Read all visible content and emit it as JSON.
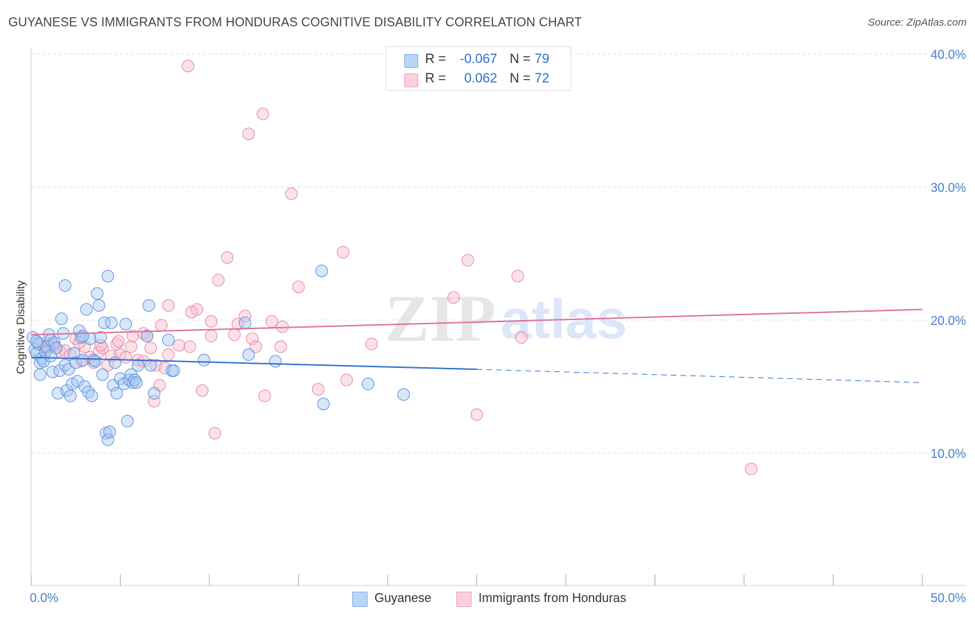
{
  "title": "GUYANESE VS IMMIGRANTS FROM HONDURAS COGNITIVE DISABILITY CORRELATION CHART",
  "source": "Source: ZipAtlas.com",
  "watermark": {
    "part1": "ZIP",
    "part2": "atlas"
  },
  "legend": {
    "rows": [
      {
        "r_label": "R =",
        "r_value": "-0.067",
        "n_label": "N =",
        "n_value": "79",
        "color": "#7baaf0"
      },
      {
        "r_label": "R =",
        "r_value": "0.062",
        "n_label": "N =",
        "n_value": "72",
        "color": "#f4a0bb"
      }
    ]
  },
  "bottom_legend": [
    {
      "label": "Guyanese",
      "color": "#7baaf0"
    },
    {
      "label": "Immigrants from Honduras",
      "color": "#f4a0bb"
    }
  ],
  "colors": {
    "blue_fill": "#a9c8f3",
    "blue_stroke": "#5e92dd",
    "blue_line": "#2f6fcf",
    "pink_fill": "#f7bccd",
    "pink_stroke": "#e88aa8",
    "pink_line": "#e0709a",
    "tick_text": "#4a7fd0",
    "grid": "#dddddd"
  },
  "chart_data": {
    "type": "scatter",
    "title": "GUYANESE VS IMMIGRANTS FROM HONDURAS COGNITIVE DISABILITY CORRELATION CHART",
    "xlabel": "",
    "ylabel": "Cognitive Disability",
    "xlim": [
      0,
      50
    ],
    "ylim": [
      0,
      41
    ],
    "x_tick_labels": [
      "0.0%",
      "50.0%"
    ],
    "y_ticks": [
      10,
      20,
      30,
      40
    ],
    "y_tick_labels": [
      "10.0%",
      "20.0%",
      "30.0%",
      "40.0%"
    ],
    "grid": true,
    "series": [
      {
        "name": "Guyanese",
        "r": -0.067,
        "n": 79,
        "trend": {
          "x0": 0,
          "y0": 17.2,
          "x1": 25,
          "y1": 16.3,
          "dashed_to_x": 50,
          "dashed_to_y": 15.3
        },
        "points": [
          [
            0.1,
            18.7
          ],
          [
            0.2,
            17.8
          ],
          [
            0.3,
            17.5
          ],
          [
            0.4,
            18.2
          ],
          [
            0.5,
            16.8
          ],
          [
            0.5,
            15.9
          ],
          [
            0.6,
            17.1
          ],
          [
            0.7,
            16.9
          ],
          [
            0.8,
            17.6
          ],
          [
            0.9,
            18.0
          ],
          [
            1.0,
            18.9
          ],
          [
            1.1,
            18.5
          ],
          [
            1.2,
            16.1
          ],
          [
            1.3,
            18.3
          ],
          [
            1.4,
            17.9
          ],
          [
            1.5,
            14.5
          ],
          [
            1.6,
            16.2
          ],
          [
            1.7,
            20.1
          ],
          [
            1.8,
            19.0
          ],
          [
            1.9,
            16.6
          ],
          [
            1.9,
            22.6
          ],
          [
            2.0,
            14.7
          ],
          [
            2.1,
            16.3
          ],
          [
            2.2,
            14.3
          ],
          [
            2.3,
            15.2
          ],
          [
            2.4,
            17.5
          ],
          [
            2.5,
            16.8
          ],
          [
            2.6,
            15.4
          ],
          [
            2.7,
            19.2
          ],
          [
            2.8,
            18.7
          ],
          [
            2.9,
            17.0
          ],
          [
            3.0,
            15.0
          ],
          [
            3.1,
            20.8
          ],
          [
            3.2,
            14.6
          ],
          [
            3.3,
            18.6
          ],
          [
            3.4,
            14.3
          ],
          [
            3.5,
            17.0
          ],
          [
            3.6,
            16.9
          ],
          [
            3.7,
            22.0
          ],
          [
            3.8,
            21.1
          ],
          [
            3.9,
            18.7
          ],
          [
            4.0,
            15.9
          ],
          [
            4.1,
            19.8
          ],
          [
            4.2,
            11.5
          ],
          [
            4.3,
            11.0
          ],
          [
            4.3,
            23.3
          ],
          [
            4.4,
            11.6
          ],
          [
            4.5,
            19.8
          ],
          [
            4.6,
            15.1
          ],
          [
            4.7,
            16.8
          ],
          [
            4.8,
            14.5
          ],
          [
            5.0,
            15.6
          ],
          [
            5.2,
            15.2
          ],
          [
            5.3,
            19.7
          ],
          [
            5.4,
            12.4
          ],
          [
            5.5,
            15.5
          ],
          [
            5.6,
            15.9
          ],
          [
            5.7,
            15.3
          ],
          [
            5.8,
            15.5
          ],
          [
            5.9,
            15.3
          ],
          [
            6.0,
            16.6
          ],
          [
            6.5,
            18.8
          ],
          [
            6.6,
            21.1
          ],
          [
            6.7,
            16.6
          ],
          [
            6.9,
            14.5
          ],
          [
            7.7,
            18.5
          ],
          [
            7.9,
            16.2
          ],
          [
            8.0,
            16.2
          ],
          [
            9.7,
            17.0
          ],
          [
            12.0,
            19.8
          ],
          [
            12.2,
            17.4
          ],
          [
            13.7,
            16.9
          ],
          [
            16.3,
            23.7
          ],
          [
            16.4,
            13.7
          ],
          [
            18.9,
            15.2
          ],
          [
            20.9,
            14.4
          ],
          [
            0.3,
            18.4
          ],
          [
            1.1,
            17.3
          ],
          [
            2.9,
            18.8
          ]
        ]
      },
      {
        "name": "Immigrants from Honduras",
        "r": 0.062,
        "n": 72,
        "trend": {
          "x0": 0,
          "y0": 18.9,
          "x1": 50,
          "y1": 20.8
        },
        "points": [
          [
            8.8,
            39.1
          ],
          [
            13.0,
            35.5
          ],
          [
            12.2,
            34.0
          ],
          [
            14.6,
            29.5
          ],
          [
            17.5,
            25.1
          ],
          [
            24.5,
            24.5
          ],
          [
            11.0,
            24.7
          ],
          [
            27.3,
            23.3
          ],
          [
            10.5,
            23.0
          ],
          [
            15.0,
            22.5
          ],
          [
            23.7,
            21.7
          ],
          [
            7.7,
            21.1
          ],
          [
            9.3,
            20.8
          ],
          [
            9.0,
            20.6
          ],
          [
            12.0,
            20.3
          ],
          [
            10.1,
            19.9
          ],
          [
            11.6,
            19.7
          ],
          [
            13.5,
            19.9
          ],
          [
            14.1,
            19.5
          ],
          [
            7.3,
            19.6
          ],
          [
            6.3,
            19.0
          ],
          [
            6.5,
            18.8
          ],
          [
            10.1,
            18.8
          ],
          [
            11.4,
            18.9
          ],
          [
            12.4,
            18.6
          ],
          [
            14.0,
            18.0
          ],
          [
            19.1,
            18.2
          ],
          [
            27.5,
            18.7
          ],
          [
            0.4,
            18.3
          ],
          [
            0.7,
            18.0
          ],
          [
            0.9,
            17.8
          ],
          [
            1.0,
            18.2
          ],
          [
            1.3,
            18.1
          ],
          [
            1.6,
            17.7
          ],
          [
            1.9,
            17.7
          ],
          [
            2.2,
            17.4
          ],
          [
            2.5,
            18.6
          ],
          [
            2.8,
            16.9
          ],
          [
            3.0,
            18.0
          ],
          [
            3.3,
            17.2
          ],
          [
            3.5,
            16.8
          ],
          [
            3.8,
            17.6
          ],
          [
            4.0,
            17.9
          ],
          [
            4.3,
            16.6
          ],
          [
            4.5,
            17.3
          ],
          [
            4.8,
            18.2
          ],
          [
            5.0,
            17.4
          ],
          [
            5.3,
            17.2
          ],
          [
            5.6,
            18.0
          ],
          [
            6.0,
            17.0
          ],
          [
            6.3,
            16.9
          ],
          [
            6.7,
            17.9
          ],
          [
            7.0,
            16.6
          ],
          [
            7.2,
            15.1
          ],
          [
            7.7,
            17.4
          ],
          [
            8.3,
            18.1
          ],
          [
            9.6,
            14.7
          ],
          [
            6.9,
            13.9
          ],
          [
            13.1,
            14.3
          ],
          [
            16.1,
            14.8
          ],
          [
            17.7,
            15.5
          ],
          [
            10.3,
            11.5
          ],
          [
            25.0,
            12.9
          ],
          [
            40.4,
            8.8
          ],
          [
            2.7,
            18.3
          ],
          [
            4.9,
            18.4
          ],
          [
            5.7,
            18.8
          ],
          [
            7.5,
            16.4
          ],
          [
            8.9,
            18.0
          ],
          [
            12.6,
            18.0
          ],
          [
            3.9,
            18.1
          ],
          [
            1.2,
            18.2
          ]
        ]
      }
    ]
  }
}
